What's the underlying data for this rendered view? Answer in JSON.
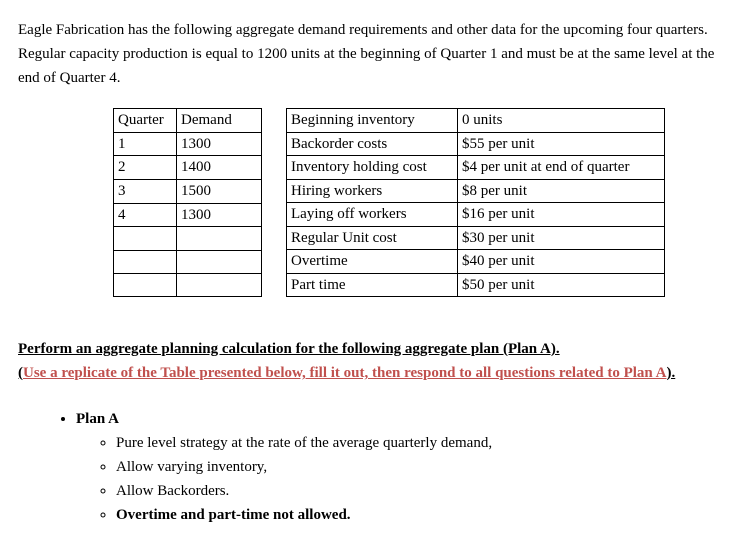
{
  "intro": "Eagle Fabrication has the following aggregate demand requirements and other data for the upcoming four quarters. Regular capacity production is equal to 1200 units at the beginning of Quarter 1 and must be at the same level at the end of Quarter 4.",
  "demand_table": {
    "header": {
      "quarter": "Quarter",
      "demand": "Demand"
    },
    "rows": [
      {
        "quarter": "1",
        "demand": "1300"
      },
      {
        "quarter": "2",
        "demand": "1400"
      },
      {
        "quarter": "3",
        "demand": "1500"
      },
      {
        "quarter": "4",
        "demand": "1300"
      },
      {
        "quarter": "",
        "demand": ""
      },
      {
        "quarter": "",
        "demand": ""
      },
      {
        "quarter": "",
        "demand": ""
      }
    ]
  },
  "costs_table": {
    "rows": [
      {
        "label": "Beginning inventory",
        "value": "0 units"
      },
      {
        "label": "Backorder costs",
        "value": "$55 per unit"
      },
      {
        "label": "Inventory holding cost",
        "value": "$4 per unit at end of quarter"
      },
      {
        "label": "Hiring workers",
        "value": "$8 per unit"
      },
      {
        "label": "Laying off workers",
        "value": "$16 per unit"
      },
      {
        "label": "Regular Unit cost",
        "value": "$30 per unit"
      },
      {
        "label": "Overtime",
        "value": "$40 per unit"
      },
      {
        "label": "Part time",
        "value": "$50 per unit"
      }
    ]
  },
  "instruction": {
    "line1": "Perform an aggregate planning calculation for the following aggregate plan (Plan A).",
    "line2_open": "(",
    "line2_red": "Use a replicate of the Table presented below, fill it out, then respond to all questions related to Plan A",
    "line2_close": ")."
  },
  "plan": {
    "title": "Plan A",
    "items": [
      {
        "text": "Pure level strategy at the rate of the average quarterly demand,",
        "bold": false
      },
      {
        "text": "Allow varying inventory,",
        "bold": false
      },
      {
        "text": "Allow Backorders.",
        "bold": false
      },
      {
        "text": "Overtime and part-time not allowed.",
        "bold": true
      }
    ]
  }
}
